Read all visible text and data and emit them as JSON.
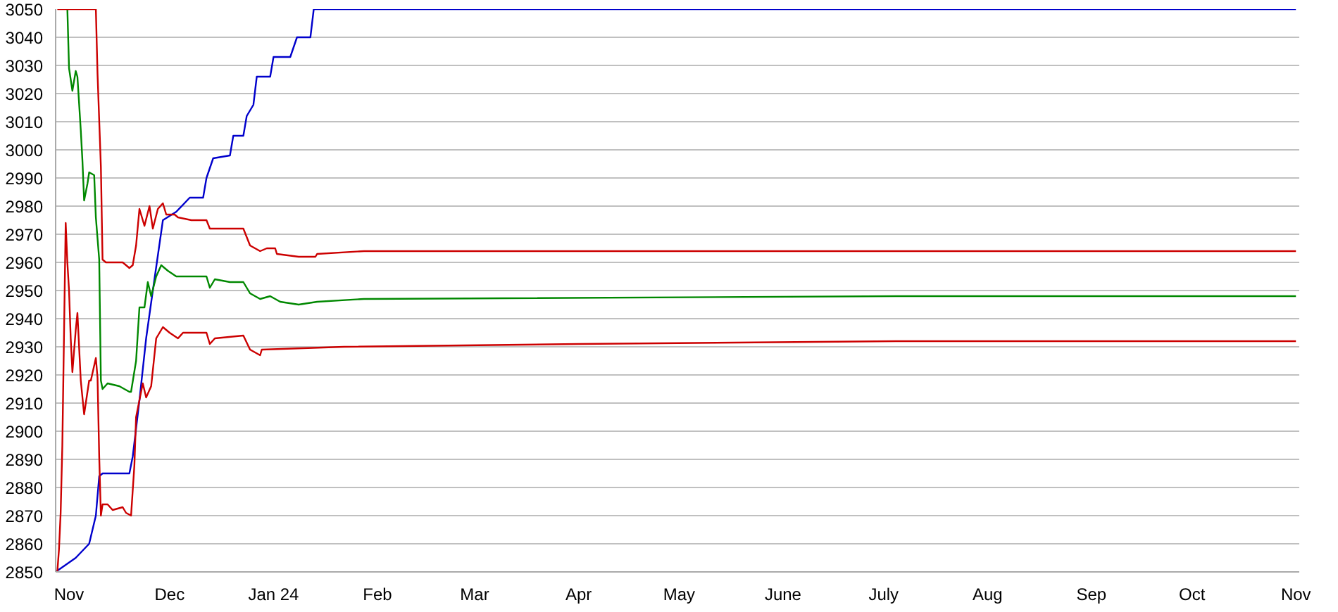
{
  "chart_data": {
    "type": "line",
    "xlim": [
      "2023-10-28",
      "2024-11-02"
    ],
    "xticks": [
      {
        "value": "2023-11-01",
        "label": "Nov"
      },
      {
        "value": "2023-12-01",
        "label": "Dec"
      },
      {
        "value": "2024-01-01",
        "label": "Jan 24"
      },
      {
        "value": "2024-02-01",
        "label": "Feb"
      },
      {
        "value": "2024-03-01",
        "label": "Mar"
      },
      {
        "value": "2024-04-01",
        "label": "Apr"
      },
      {
        "value": "2024-05-01",
        "label": "May"
      },
      {
        "value": "2024-06-01",
        "label": "June"
      },
      {
        "value": "2024-07-01",
        "label": "July"
      },
      {
        "value": "2024-08-01",
        "label": "Aug"
      },
      {
        "value": "2024-09-01",
        "label": "Sep"
      },
      {
        "value": "2024-10-01",
        "label": "Oct"
      },
      {
        "value": "2024-11-01",
        "label": "Nov"
      }
    ],
    "ylim": [
      2850,
      3050
    ],
    "yticks": [
      2850,
      2860,
      2870,
      2880,
      2890,
      2900,
      2910,
      2920,
      2930,
      2940,
      2950,
      2960,
      2970,
      2980,
      2990,
      3000,
      3010,
      3020,
      3030,
      3040,
      3050
    ],
    "grid": "y",
    "series": [
      {
        "color": "#0000cc",
        "x": [
          "2023-10-28",
          "2023-11-03",
          "2023-11-07",
          "2023-11-09",
          "2023-11-10",
          "2023-11-11",
          "2023-11-19",
          "2023-11-20",
          "2023-11-22",
          "2023-11-24",
          "2023-11-26",
          "2023-11-29",
          "2023-12-03",
          "2023-12-07",
          "2023-12-11",
          "2023-12-12",
          "2023-12-14",
          "2023-12-19",
          "2023-12-20",
          "2023-12-23",
          "2023-12-24",
          "2023-12-26",
          "2023-12-27",
          "2023-12-31",
          "2024-01-01",
          "2024-01-06",
          "2024-01-08",
          "2024-01-12",
          "2024-01-13",
          "2024-11-01"
        ],
        "values": [
          2850,
          2855,
          2860,
          2870,
          2884,
          2885,
          2885,
          2891,
          2911,
          2933,
          2950,
          2975,
          2978,
          2983,
          2983,
          2990,
          2997,
          2998,
          3005,
          3005,
          3012,
          3016,
          3026,
          3026,
          3033,
          3033,
          3040,
          3040,
          3050,
          3050
        ]
      },
      {
        "color": "#008800",
        "x": [
          "2023-10-31T12:00",
          "2023-11-01",
          "2023-11-02",
          "2023-11-03",
          "2023-11-03T12:00",
          "2023-11-04T12:00",
          "2023-11-05",
          "2023-11-05T12:00",
          "2023-11-06T12:00",
          "2023-11-07",
          "2023-11-08T12:00",
          "2023-11-09",
          "2023-11-10",
          "2023-11-10T12:00",
          "2023-11-11",
          "2023-11-12T12:00",
          "2023-11-16",
          "2023-11-19",
          "2023-11-19T12:00",
          "2023-11-21",
          "2023-11-22",
          "2023-11-23T12:00",
          "2023-11-24T12:00",
          "2023-11-25T12:00",
          "2023-11-27",
          "2023-11-28T12:00",
          "2023-11-30T12:00",
          "2023-12-03",
          "2023-12-12",
          "2023-12-13",
          "2023-12-14T12:00",
          "2023-12-19",
          "2023-12-23",
          "2023-12-25",
          "2023-12-28",
          "2023-12-31",
          "2024-01-03",
          "2024-01-08T12:00",
          "2024-01-14",
          "2024-01-28",
          "2024-07-05",
          "2024-11-01"
        ],
        "values": [
          3050,
          3029,
          3021,
          3028,
          3026,
          3007,
          2996,
          2982,
          2988,
          2992,
          2991,
          2976,
          2961,
          2918,
          2915,
          2917,
          2916,
          2914,
          2914,
          2925,
          2944,
          2944,
          2953,
          2948,
          2955,
          2959,
          2957,
          2955,
          2955,
          2951,
          2954,
          2953,
          2953,
          2949,
          2947,
          2948,
          2946,
          2945,
          2946,
          2947,
          2948,
          2948
        ]
      },
      {
        "color": "#cc0000",
        "x": [
          "2023-10-28T12:00",
          "2023-11-09",
          "2023-11-09T12:00",
          "2023-11-10T12:00",
          "2023-11-11",
          "2023-11-12",
          "2023-11-17",
          "2023-11-19",
          "2023-11-20",
          "2023-11-21",
          "2023-11-22",
          "2023-11-23T12:00",
          "2023-11-25",
          "2023-11-26",
          "2023-11-27T12:00",
          "2023-11-29",
          "2023-11-30",
          "2023-12-02T12:00",
          "2023-12-03T12:00",
          "2023-12-07T12:00",
          "2023-12-12",
          "2023-12-13",
          "2023-12-23",
          "2023-12-25",
          "2023-12-28",
          "2023-12-30",
          "2024-01-01T12:00",
          "2024-01-02",
          "2024-01-08T12:00",
          "2024-01-13T12:00",
          "2024-01-14",
          "2024-01-28",
          "2024-11-01"
        ],
        "values": [
          3050,
          3050,
          3027,
          2994,
          2961,
          2960,
          2960,
          2958,
          2959,
          2966,
          2979,
          2973,
          2980,
          2972,
          2979,
          2981,
          2977,
          2977,
          2976,
          2975,
          2975,
          2972,
          2972,
          2966,
          2964,
          2965,
          2965,
          2963,
          2962,
          2962,
          2963,
          2964,
          2964
        ]
      },
      {
        "color": "#cc0000",
        "x": [
          "2023-10-28T12:00",
          "2023-10-29",
          "2023-10-29T12:00",
          "2023-10-30",
          "2023-10-31",
          "2023-10-31T12:00",
          "2023-11-01",
          "2023-11-01T12:00",
          "2023-11-02",
          "2023-11-03",
          "2023-11-03T12:00",
          "2023-11-04T12:00",
          "2023-11-05T12:00",
          "2023-11-06T12:00",
          "2023-11-07",
          "2023-11-07T12:00",
          "2023-11-09",
          "2023-11-09T12:00",
          "2023-11-10",
          "2023-11-10T12:00",
          "2023-11-11",
          "2023-11-12T12:00",
          "2023-11-14",
          "2023-11-17",
          "2023-11-18",
          "2023-11-19T12:00",
          "2023-11-20T12:00",
          "2023-11-21",
          "2023-11-23",
          "2023-11-24",
          "2023-11-25T12:00",
          "2023-11-27",
          "2023-11-29",
          "2023-12-01",
          "2023-12-03T12:00",
          "2023-12-05",
          "2023-12-12",
          "2023-12-13",
          "2023-12-14T12:00",
          "2023-12-23",
          "2023-12-25",
          "2023-12-28",
          "2023-12-28T12:00",
          "2024-01-22",
          "2024-04-01",
          "2024-07-05",
          "2024-11-01"
        ],
        "values": [
          2850,
          2858,
          2871,
          2895,
          2974,
          2960,
          2950,
          2933,
          2921,
          2936,
          2942,
          2918,
          2906,
          2914,
          2918,
          2918,
          2926,
          2919,
          2891,
          2870,
          2874,
          2874,
          2872,
          2873,
          2871,
          2870,
          2888,
          2905,
          2917,
          2912,
          2916,
          2933,
          2937,
          2935,
          2933,
          2935,
          2935,
          2931,
          2933,
          2934,
          2929,
          2927,
          2929,
          2930,
          2931,
          2932,
          2932
        ]
      }
    ]
  }
}
